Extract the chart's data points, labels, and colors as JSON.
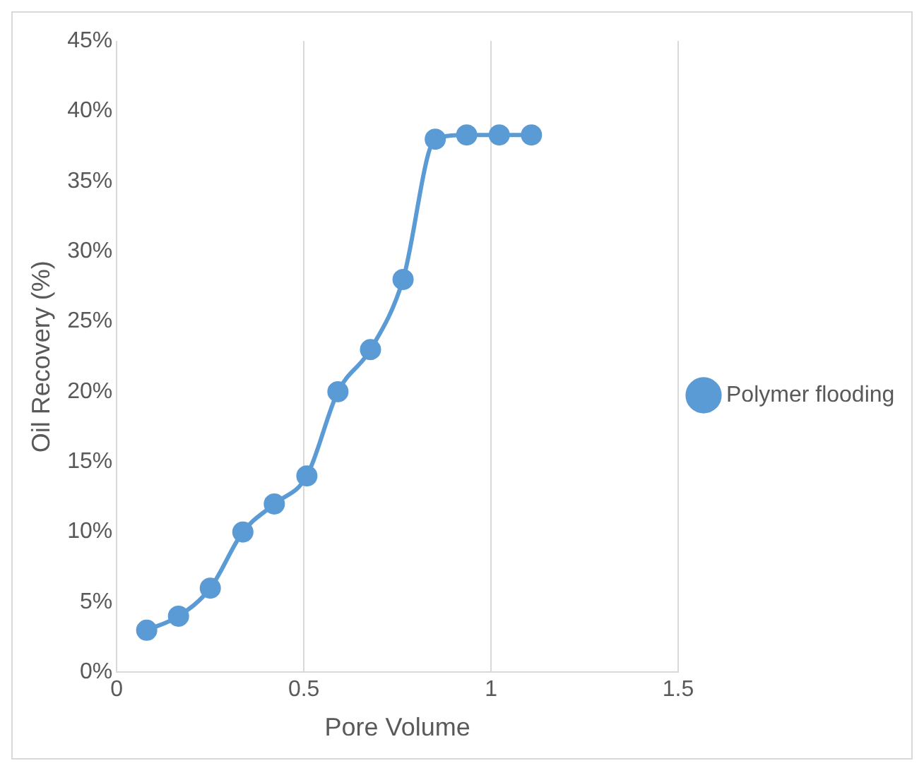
{
  "chart_data": {
    "type": "line",
    "xlabel": "Pore Volume",
    "ylabel": "Oil Recovery (%)",
    "x": [
      0.08,
      0.165,
      0.25,
      0.337,
      0.421,
      0.508,
      0.591,
      0.678,
      0.765,
      0.851,
      0.935,
      1.022,
      1.108
    ],
    "series": [
      {
        "name": "Polymer flooding",
        "color": "#5b9bd5",
        "values": [
          3,
          4,
          6,
          10,
          12,
          14,
          20,
          23,
          28,
          38,
          38.3,
          38.3,
          38.3
        ]
      }
    ],
    "xlim": [
      0,
      1.5
    ],
    "xticks": [
      0,
      0.5,
      1,
      1.5
    ],
    "ylim": [
      0,
      45
    ],
    "yticks": [
      {
        "value": 0,
        "label": "0%"
      },
      {
        "value": 5,
        "label": "5%"
      },
      {
        "value": 10,
        "label": "10%"
      },
      {
        "value": 15,
        "label": "15%"
      },
      {
        "value": 20,
        "label": "20%"
      },
      {
        "value": 25,
        "label": "25%"
      },
      {
        "value": 30,
        "label": "30%"
      },
      {
        "value": 35,
        "label": "35%"
      },
      {
        "value": 40,
        "label": "40%"
      },
      {
        "value": 45,
        "label": "45%"
      }
    ],
    "grid": "x",
    "legend": "right",
    "marker": "circle",
    "line_style": "solid"
  }
}
